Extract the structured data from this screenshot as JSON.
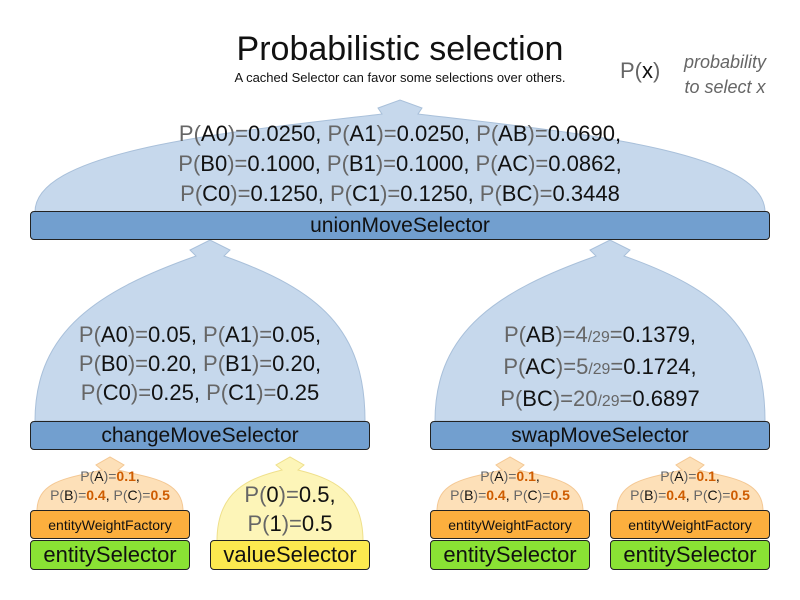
{
  "title": "Probabilistic selection",
  "subtitle": "A cached Selector can favor some selections over others.",
  "legend": {
    "symbol": [
      [
        "P(",
        "g"
      ],
      [
        "x",
        "k"
      ],
      [
        ")",
        "g"
      ]
    ],
    "line1": "probability",
    "line2": "to select x"
  },
  "colors": {
    "blue": "#729fcf",
    "blue_fill": "#c6d8ec",
    "orange": "#fcaf3e",
    "orange_fill": "#fde0b8",
    "green": "#8ae234",
    "yellow": "#fce94f",
    "yellow_fill": "#fdf5b8",
    "highlight": "#ce5c00"
  },
  "union": {
    "label": "unionMoveSelector",
    "lines": [
      [
        [
          "P(",
          "g"
        ],
        [
          "A0",
          "k"
        ],
        [
          ")=",
          "g"
        ],
        [
          "0.0250, ",
          "k"
        ],
        [
          "P(",
          "g"
        ],
        [
          "A1",
          "k"
        ],
        [
          ")=",
          "g"
        ],
        [
          "0.0250, ",
          "k"
        ],
        [
          "P(",
          "g"
        ],
        [
          "AB",
          "k"
        ],
        [
          ")=",
          "g"
        ],
        [
          "0.0690,",
          "k"
        ]
      ],
      [
        [
          "P(",
          "g"
        ],
        [
          "B0",
          "k"
        ],
        [
          ")=",
          "g"
        ],
        [
          "0.1000, ",
          "k"
        ],
        [
          "P(",
          "g"
        ],
        [
          "B1",
          "k"
        ],
        [
          ")=",
          "g"
        ],
        [
          "0.1000, ",
          "k"
        ],
        [
          "P(",
          "g"
        ],
        [
          "AC",
          "k"
        ],
        [
          ")=",
          "g"
        ],
        [
          "0.0862,",
          "k"
        ]
      ],
      [
        [
          "P(",
          "g"
        ],
        [
          "C0",
          "k"
        ],
        [
          ")=",
          "g"
        ],
        [
          "0.1250, ",
          "k"
        ],
        [
          "P(",
          "g"
        ],
        [
          "C1",
          "k"
        ],
        [
          ")=",
          "g"
        ],
        [
          "0.1250, ",
          "k"
        ],
        [
          "P(",
          "g"
        ],
        [
          "BC",
          "k"
        ],
        [
          ")=",
          "g"
        ],
        [
          "0.3448",
          "k"
        ]
      ]
    ]
  },
  "change": {
    "label": "changeMoveSelector",
    "lines": [
      [
        [
          "P(",
          "g"
        ],
        [
          "A0",
          "k"
        ],
        [
          ")=",
          "g"
        ],
        [
          "0.05, ",
          "k"
        ],
        [
          "P(",
          "g"
        ],
        [
          "A1",
          "k"
        ],
        [
          ")=",
          "g"
        ],
        [
          "0.05,",
          "k"
        ]
      ],
      [
        [
          "P(",
          "g"
        ],
        [
          "B0",
          "k"
        ],
        [
          ")=",
          "g"
        ],
        [
          "0.20, ",
          "k"
        ],
        [
          "P(",
          "g"
        ],
        [
          "B1",
          "k"
        ],
        [
          ")=",
          "g"
        ],
        [
          "0.20,",
          "k"
        ]
      ],
      [
        [
          "P(",
          "g"
        ],
        [
          "C0",
          "k"
        ],
        [
          ")=",
          "g"
        ],
        [
          "0.25, ",
          "k"
        ],
        [
          "P(",
          "g"
        ],
        [
          "C1",
          "k"
        ],
        [
          ")=",
          "g"
        ],
        [
          "0.25",
          "k"
        ]
      ]
    ]
  },
  "swap": {
    "label": "swapMoveSelector",
    "lines": [
      [
        [
          "P(",
          "g"
        ],
        [
          "AB",
          "k"
        ],
        [
          ")=4",
          "g"
        ],
        [
          "/29",
          "s"
        ],
        [
          "=",
          "g"
        ],
        [
          "0.1379,",
          "k"
        ]
      ],
      [
        [
          "P(",
          "g"
        ],
        [
          "AC",
          "k"
        ],
        [
          ")=5",
          "g"
        ],
        [
          "/29",
          "s"
        ],
        [
          "=",
          "g"
        ],
        [
          "0.1724,",
          "k"
        ]
      ],
      [
        [
          "P(",
          "g"
        ],
        [
          "BC",
          "k"
        ],
        [
          ")=20",
          "g"
        ],
        [
          "/29",
          "s"
        ],
        [
          "=",
          "g"
        ],
        [
          "0.6897",
          "k"
        ]
      ]
    ]
  },
  "weights": {
    "lines": [
      [
        [
          "P(",
          "g"
        ],
        [
          "A",
          "k"
        ],
        [
          ")=",
          "g"
        ],
        [
          "0.1",
          "o"
        ],
        [
          ",",
          "k"
        ]
      ],
      [
        [
          "P(",
          "g"
        ],
        [
          "B",
          "k"
        ],
        [
          ")=",
          "g"
        ],
        [
          "0.4",
          "o"
        ],
        [
          ", ",
          "k"
        ],
        [
          "P(",
          "g"
        ],
        [
          "C",
          "k"
        ],
        [
          ")=",
          "g"
        ],
        [
          "0.5",
          "o"
        ]
      ]
    ]
  },
  "value": {
    "label": "valueSelector",
    "lines": [
      [
        [
          "P(",
          "g"
        ],
        [
          "0",
          "k"
        ],
        [
          ")=",
          "g"
        ],
        [
          "0.5,",
          "k"
        ]
      ],
      [
        [
          "P(",
          "g"
        ],
        [
          "1",
          "k"
        ],
        [
          ")=",
          "g"
        ],
        [
          "0.5",
          "k"
        ]
      ]
    ]
  },
  "factory_label": "entityWeightFactory",
  "entity_label": "entitySelector"
}
